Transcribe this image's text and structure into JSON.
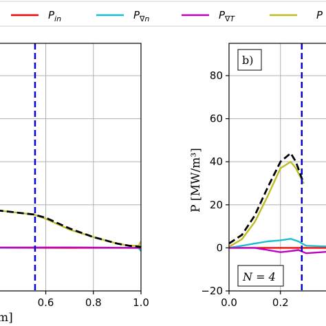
{
  "legend": [
    {
      "main": "P",
      "sub": "in",
      "color": "#ff0000"
    },
    {
      "main": "P",
      "sub": "∇n",
      "color": "#17becf"
    },
    {
      "main": "P",
      "sub": "∇T",
      "color": "#c000c0"
    },
    {
      "main": "P",
      "sub": "",
      "color": "#bcbd22"
    }
  ],
  "chart_data": [
    {
      "type": "line",
      "panel": "a",
      "xlim": [
        0.35,
        1.0
      ],
      "ylim": [
        -20,
        95
      ],
      "xticks": [
        "0.6",
        "0.8",
        "1.0"
      ],
      "xlabel_fragment": "m]",
      "grid": true,
      "vline_x": 0.555,
      "series": [
        {
          "key": "total",
          "color": "#000000",
          "dash": true,
          "x": [
            0.35,
            0.55,
            0.6,
            0.7,
            0.8,
            0.9,
            0.95,
            0.99,
            1.0
          ],
          "y": [
            18,
            15.5,
            14,
            9,
            5,
            2,
            1,
            0.5,
            0.5
          ]
        },
        {
          "key": "p4",
          "color": "#bcbd22",
          "x": [
            0.35,
            0.55,
            0.6,
            0.7,
            0.8,
            0.9,
            0.95,
            0.99,
            1.0
          ],
          "y": [
            18,
            15.5,
            13.5,
            8.5,
            5,
            2,
            1,
            1,
            3
          ]
        },
        {
          "key": "pin",
          "color": "#ff0000",
          "x": [
            0.35,
            1.0
          ],
          "y": [
            0,
            0
          ]
        },
        {
          "key": "pgn",
          "color": "#17becf",
          "x": [
            0.35,
            0.7,
            0.99,
            1.0
          ],
          "y": [
            0,
            0.2,
            0,
            -1.5
          ]
        },
        {
          "key": "pgt",
          "color": "#c000c0",
          "x": [
            0.35,
            0.7,
            1.0
          ],
          "y": [
            0.2,
            0.2,
            0
          ]
        }
      ]
    },
    {
      "type": "line",
      "panel": "b",
      "label": "b)",
      "annotation": "N = 4",
      "xlim": [
        0.0,
        0.42
      ],
      "ylim": [
        -20,
        95
      ],
      "xticks": [
        "0.0",
        "0.2"
      ],
      "yticks": [
        "80",
        "60",
        "40",
        "20",
        "0",
        "−20"
      ],
      "ylabel": "P [MW/m³]",
      "grid": true,
      "vline_x": 0.283,
      "series": [
        {
          "key": "total",
          "color": "#000000",
          "dash": true,
          "x": [
            0.0,
            0.05,
            0.1,
            0.15,
            0.2,
            0.24,
            0.26,
            0.29
          ],
          "y": [
            2,
            6,
            15,
            28,
            40,
            44,
            40,
            30
          ]
        },
        {
          "key": "p4",
          "color": "#bcbd22",
          "x": [
            0.0,
            0.05,
            0.1,
            0.15,
            0.2,
            0.24,
            0.26,
            0.29
          ],
          "y": [
            0.5,
            4,
            12,
            24,
            37,
            40,
            37,
            30
          ]
        },
        {
          "key": "pin",
          "color": "#ff0000",
          "x": [
            0.0,
            0.42
          ],
          "y": [
            0,
            0
          ]
        },
        {
          "key": "pgn",
          "color": "#17becf",
          "x": [
            0.0,
            0.05,
            0.1,
            0.15,
            0.2,
            0.24,
            0.27,
            0.3,
            0.42
          ],
          "y": [
            0,
            1,
            2,
            3,
            3.5,
            4.2,
            3,
            1,
            0.5
          ]
        },
        {
          "key": "pgt",
          "color": "#c000c0",
          "x": [
            0.0,
            0.1,
            0.15,
            0.2,
            0.24,
            0.27,
            0.3,
            0.42
          ],
          "y": [
            0,
            0,
            -1,
            -2,
            -1.5,
            -1,
            -2.5,
            -1.5
          ]
        }
      ]
    }
  ]
}
